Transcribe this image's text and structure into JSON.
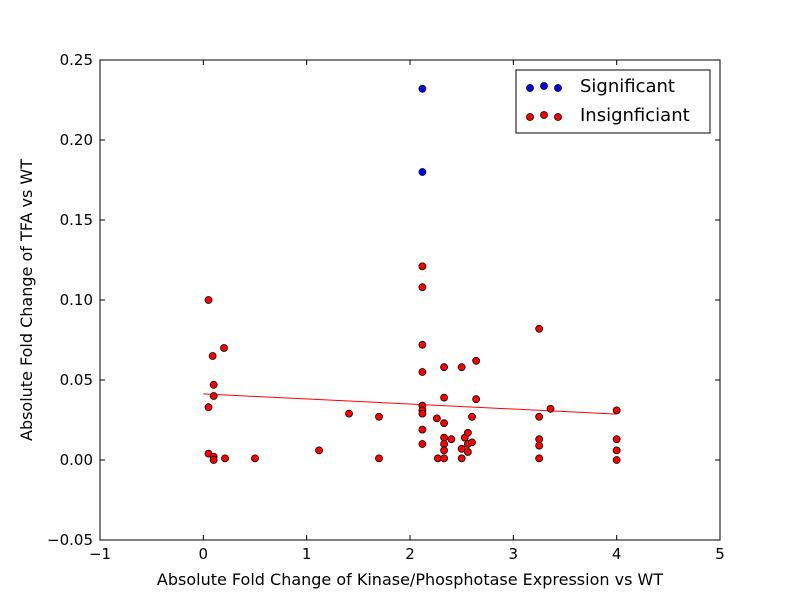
{
  "chart_data": {
    "type": "scatter",
    "xlabel": "Absolute Fold Change of Kinase/Phosphotase Expression vs WT",
    "ylabel": "Absolute Fold Change of TFA vs WT",
    "xlim": [
      -1,
      5
    ],
    "ylim": [
      -0.05,
      0.25
    ],
    "x_ticks": [
      -1,
      0,
      1,
      2,
      3,
      4,
      5
    ],
    "x_tick_labels": [
      "−1",
      "0",
      "1",
      "2",
      "3",
      "4",
      "5"
    ],
    "y_ticks": [
      -0.05,
      0.0,
      0.05,
      0.1,
      0.15,
      0.2,
      0.25
    ],
    "y_tick_labels": [
      "−0.05",
      "0.00",
      "0.05",
      "0.10",
      "0.15",
      "0.20",
      "0.25"
    ],
    "grid": false,
    "legend_position": "top-right",
    "series": [
      {
        "name": "Significant",
        "color": "#0000ff",
        "points": [
          [
            2.12,
            0.232
          ],
          [
            2.12,
            0.18
          ]
        ]
      },
      {
        "name": "Insignficiant",
        "color": "#ff0000",
        "points": [
          [
            0.05,
            0.1
          ],
          [
            0.09,
            0.065
          ],
          [
            0.2,
            0.07
          ],
          [
            0.1,
            0.047
          ],
          [
            0.1,
            0.04
          ],
          [
            0.05,
            0.033
          ],
          [
            0.05,
            0.004
          ],
          [
            0.1,
            0.002
          ],
          [
            0.1,
            0.0
          ],
          [
            0.21,
            0.001
          ],
          [
            0.5,
            0.001
          ],
          [
            1.12,
            0.006
          ],
          [
            1.41,
            0.029
          ],
          [
            1.7,
            0.027
          ],
          [
            1.7,
            0.001
          ],
          [
            2.12,
            0.121
          ],
          [
            2.12,
            0.108
          ],
          [
            2.12,
            0.072
          ],
          [
            2.12,
            0.055
          ],
          [
            2.12,
            0.034
          ],
          [
            2.12,
            0.031
          ],
          [
            2.12,
            0.029
          ],
          [
            2.12,
            0.019
          ],
          [
            2.12,
            0.01
          ],
          [
            2.26,
            0.026
          ],
          [
            2.27,
            0.001
          ],
          [
            2.33,
            0.058
          ],
          [
            2.33,
            0.039
          ],
          [
            2.33,
            0.023
          ],
          [
            2.33,
            0.014
          ],
          [
            2.33,
            0.01
          ],
          [
            2.33,
            0.006
          ],
          [
            2.33,
            0.001
          ],
          [
            2.4,
            0.013
          ],
          [
            2.5,
            0.058
          ],
          [
            2.5,
            0.007
          ],
          [
            2.5,
            0.001
          ],
          [
            2.53,
            0.014
          ],
          [
            2.56,
            0.017
          ],
          [
            2.56,
            0.01
          ],
          [
            2.56,
            0.005
          ],
          [
            2.6,
            0.027
          ],
          [
            2.6,
            0.011
          ],
          [
            2.64,
            0.062
          ],
          [
            2.64,
            0.038
          ],
          [
            3.25,
            0.082
          ],
          [
            3.25,
            0.027
          ],
          [
            3.25,
            0.013
          ],
          [
            3.25,
            0.009
          ],
          [
            3.25,
            0.001
          ],
          [
            3.36,
            0.032
          ],
          [
            4.0,
            0.031
          ],
          [
            4.0,
            0.013
          ],
          [
            4.0,
            0.006
          ],
          [
            4.0,
            0.0
          ]
        ]
      }
    ],
    "trendline": {
      "color": "#ff0000",
      "points": [
        [
          0.0,
          0.0413
        ],
        [
          4.0,
          0.0287
        ]
      ]
    }
  }
}
